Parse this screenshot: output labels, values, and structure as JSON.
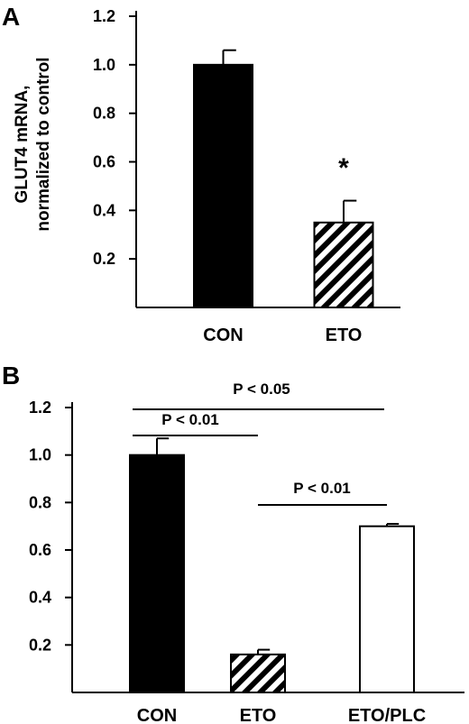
{
  "chart_data": [
    {
      "panel_label": "A",
      "type": "bar",
      "categories": [
        "CON",
        "ETO"
      ],
      "values": [
        1.0,
        0.35
      ],
      "errors": [
        0.06,
        0.09
      ],
      "fills": [
        "solid",
        "hatched"
      ],
      "ylabel_lines": [
        "GLUT4 mRNA,",
        "normalized to control"
      ],
      "yticks": [
        "0.2",
        "0.4",
        "0.6",
        "0.8",
        "1.0",
        "1.2"
      ],
      "ylim": [
        0,
        1.2
      ],
      "annotations": [
        {
          "text": "*",
          "category": "ETO"
        }
      ]
    },
    {
      "panel_label": "B",
      "type": "bar",
      "categories": [
        "CON",
        "ETO",
        "ETO/PLC"
      ],
      "values": [
        1.0,
        0.16,
        0.7
      ],
      "errors": [
        0.07,
        0.02,
        0.01
      ],
      "fills": [
        "solid",
        "hatched",
        "open"
      ],
      "yticks": [
        "0.2",
        "0.4",
        "0.6",
        "0.8",
        "1.0",
        "1.2"
      ],
      "ylim": [
        0,
        1.2
      ],
      "comparisons": [
        {
          "text": "P < 0.05",
          "from": "CON",
          "to": "ETO/PLC"
        },
        {
          "text": "P < 0.01",
          "from": "CON",
          "to": "ETO"
        },
        {
          "text": "P < 0.01",
          "from": "ETO",
          "to": "ETO/PLC"
        }
      ]
    }
  ],
  "colors": {
    "bar_solid": "#000000",
    "bar_open": "#ffffff",
    "stroke": "#000000"
  }
}
